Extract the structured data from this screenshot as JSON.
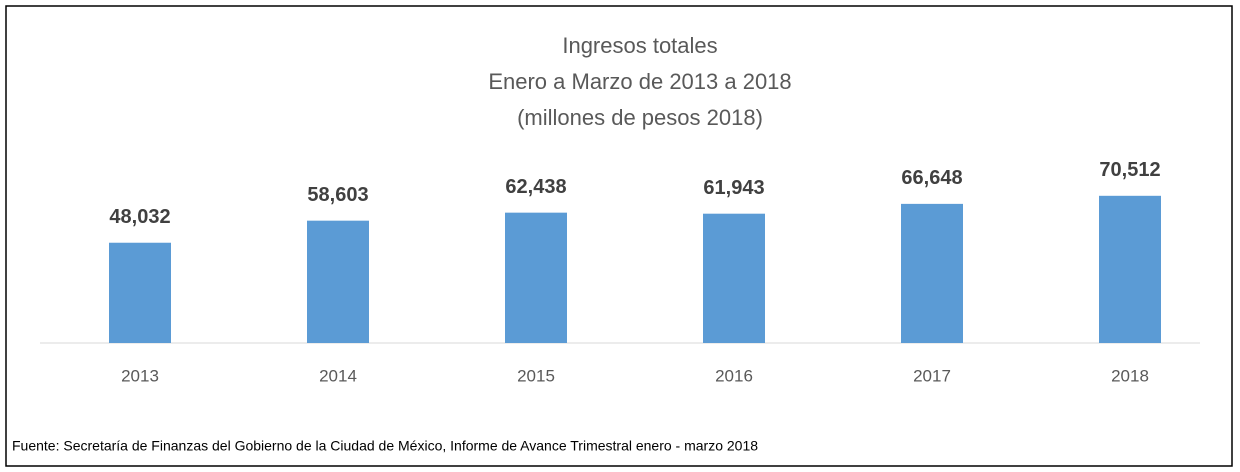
{
  "chart_data": {
    "type": "bar",
    "title": "Ingresos totales",
    "subtitle": [
      "Enero a Marzo de 2013 a 2018",
      "(millones de pesos 2018)"
    ],
    "categories": [
      "2013",
      "2014",
      "2015",
      "2016",
      "2017",
      "2018"
    ],
    "values": [
      48032,
      58603,
      62438,
      61943,
      66648,
      70512
    ],
    "value_labels": [
      "48,032",
      "58,603",
      "62,438",
      "61,943",
      "66,648",
      "70,512"
    ],
    "color": "#5b9bd5",
    "ylim": [
      0,
      80000
    ],
    "source": "Fuente: Secretaría de Finanzas del Gobierno de la Ciudad de México, Informe de Avance Trimestral enero - marzo 2018"
  }
}
